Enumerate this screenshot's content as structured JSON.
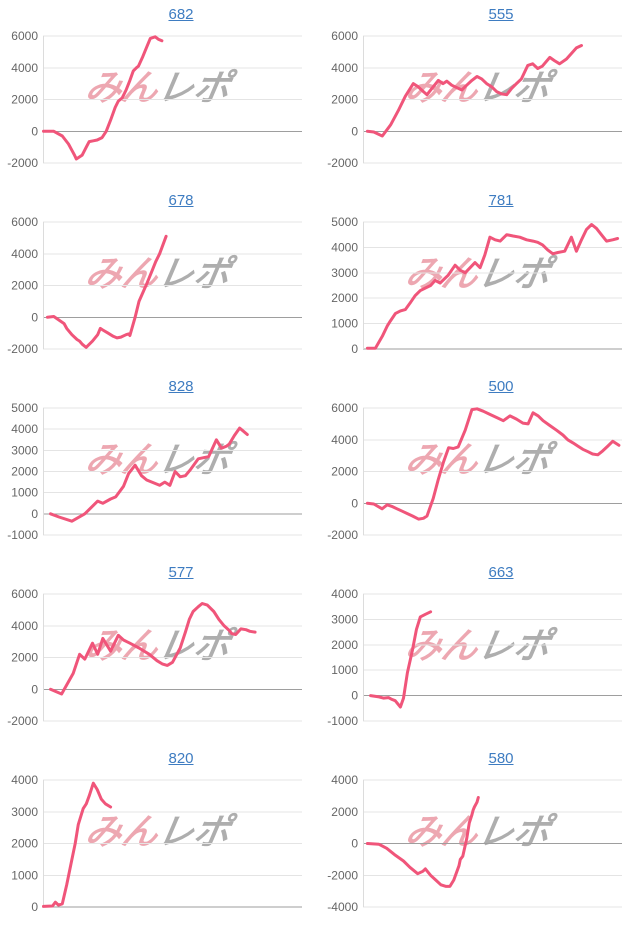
{
  "page": {
    "background": "#ffffff"
  },
  "style": {
    "line_color": "#f0557a",
    "grid_color": "#e4e4e4",
    "baseline_color": "#9e9e9e",
    "axis_line_color": "#dcdcdc",
    "label_color": "#666666",
    "title_color": "#3e7cc1",
    "watermark_pink": "#eda7b1",
    "watermark_gray": "#aeaeae"
  },
  "watermark": {
    "pink_text": "みん",
    "gray_text": "レポ"
  },
  "chart_data": [
    {
      "type": "line",
      "title": "682",
      "ylim": [
        -2000,
        6000
      ],
      "yticks": [
        6000,
        4000,
        2000,
        0,
        -2000
      ],
      "grid": true,
      "legend": "none",
      "points": [
        [
          0,
          0
        ],
        [
          0.04,
          0
        ],
        [
          0.073,
          -300
        ],
        [
          0.097,
          -800
        ],
        [
          0.11,
          -1200
        ],
        [
          0.12,
          -1500
        ],
        [
          0.127,
          -1750
        ],
        [
          0.15,
          -1500
        ],
        [
          0.166,
          -1000
        ],
        [
          0.177,
          -650
        ],
        [
          0.193,
          -600
        ],
        [
          0.208,
          -550
        ],
        [
          0.227,
          -400
        ],
        [
          0.243,
          0
        ],
        [
          0.26,
          700
        ],
        [
          0.278,
          1500
        ],
        [
          0.29,
          1900
        ],
        [
          0.305,
          2100
        ],
        [
          0.32,
          2600
        ],
        [
          0.335,
          3200
        ],
        [
          0.348,
          3800
        ],
        [
          0.36,
          4000
        ],
        [
          0.368,
          4100
        ],
        [
          0.385,
          4700
        ],
        [
          0.4,
          5300
        ],
        [
          0.414,
          5850
        ],
        [
          0.424,
          5900
        ],
        [
          0.433,
          5950
        ],
        [
          0.445,
          5800
        ],
        [
          0.459,
          5700
        ]
      ]
    },
    {
      "type": "line",
      "title": "555",
      "ylim": [
        -2000,
        6000
      ],
      "yticks": [
        6000,
        4000,
        2000,
        0,
        -2000
      ],
      "grid": true,
      "legend": "none",
      "points": [
        [
          0.015,
          0
        ],
        [
          0.04,
          -50
        ],
        [
          0.073,
          -300
        ],
        [
          0.105,
          400
        ],
        [
          0.135,
          1300
        ],
        [
          0.162,
          2200
        ],
        [
          0.193,
          3000
        ],
        [
          0.212,
          2800
        ],
        [
          0.232,
          2500
        ],
        [
          0.246,
          2300
        ],
        [
          0.27,
          2800
        ],
        [
          0.29,
          3200
        ],
        [
          0.308,
          3000
        ],
        [
          0.323,
          3150
        ],
        [
          0.342,
          2900
        ],
        [
          0.381,
          2600
        ],
        [
          0.4,
          2900
        ],
        [
          0.42,
          3200
        ],
        [
          0.44,
          3450
        ],
        [
          0.458,
          3300
        ],
        [
          0.477,
          3000
        ],
        [
          0.497,
          2800
        ],
        [
          0.516,
          2500
        ],
        [
          0.535,
          2350
        ],
        [
          0.555,
          2300
        ],
        [
          0.574,
          2700
        ],
        [
          0.593,
          3000
        ],
        [
          0.612,
          3300
        ],
        [
          0.637,
          4150
        ],
        [
          0.656,
          4250
        ],
        [
          0.675,
          3950
        ],
        [
          0.693,
          4100
        ],
        [
          0.722,
          4650
        ],
        [
          0.74,
          4450
        ],
        [
          0.76,
          4250
        ],
        [
          0.787,
          4550
        ],
        [
          0.806,
          4900
        ],
        [
          0.825,
          5250
        ],
        [
          0.845,
          5400
        ]
      ]
    },
    {
      "type": "line",
      "title": "678",
      "ylim": [
        -2000,
        6000
      ],
      "yticks": [
        6000,
        4000,
        2000,
        0,
        -2000
      ],
      "grid": true,
      "legend": "none",
      "points": [
        [
          0.015,
          0
        ],
        [
          0.04,
          50
        ],
        [
          0.08,
          -400
        ],
        [
          0.09,
          -700
        ],
        [
          0.11,
          -1100
        ],
        [
          0.13,
          -1400
        ],
        [
          0.14,
          -1500
        ],
        [
          0.15,
          -1700
        ],
        [
          0.165,
          -1900
        ],
        [
          0.19,
          -1500
        ],
        [
          0.21,
          -1100
        ],
        [
          0.22,
          -700
        ],
        [
          0.23,
          -800
        ],
        [
          0.25,
          -1000
        ],
        [
          0.27,
          -1200
        ],
        [
          0.285,
          -1300
        ],
        [
          0.3,
          -1250
        ],
        [
          0.32,
          -1100
        ],
        [
          0.33,
          -1050
        ],
        [
          0.335,
          -1150
        ],
        [
          0.355,
          0
        ],
        [
          0.37,
          1000
        ],
        [
          0.4,
          2100
        ],
        [
          0.42,
          2900
        ],
        [
          0.435,
          3500
        ],
        [
          0.45,
          4000
        ],
        [
          0.475,
          5100
        ]
      ]
    },
    {
      "type": "line",
      "title": "781",
      "ylim": [
        0,
        5000
      ],
      "yticks": [
        5000,
        4000,
        3000,
        2000,
        1000,
        0
      ],
      "grid": true,
      "legend": "none",
      "points": [
        [
          0.015,
          30
        ],
        [
          0.046,
          30
        ],
        [
          0.073,
          500
        ],
        [
          0.092,
          900
        ],
        [
          0.104,
          1100
        ],
        [
          0.124,
          1400
        ],
        [
          0.143,
          1500
        ],
        [
          0.162,
          1550
        ],
        [
          0.18,
          1800
        ],
        [
          0.2,
          2100
        ],
        [
          0.22,
          2300
        ],
        [
          0.24,
          2400
        ],
        [
          0.26,
          2500
        ],
        [
          0.278,
          2700
        ],
        [
          0.297,
          2600
        ],
        [
          0.328,
          2900
        ],
        [
          0.355,
          3300
        ],
        [
          0.375,
          3100
        ],
        [
          0.394,
          3000
        ],
        [
          0.413,
          3200
        ],
        [
          0.432,
          3400
        ],
        [
          0.452,
          3200
        ],
        [
          0.47,
          3700
        ],
        [
          0.49,
          4400
        ],
        [
          0.51,
          4300
        ],
        [
          0.53,
          4250
        ],
        [
          0.555,
          4500
        ],
        [
          0.58,
          4450
        ],
        [
          0.606,
          4400
        ],
        [
          0.632,
          4300
        ],
        [
          0.657,
          4250
        ],
        [
          0.675,
          4200
        ],
        [
          0.694,
          4100
        ],
        [
          0.714,
          3900
        ],
        [
          0.734,
          3750
        ],
        [
          0.753,
          3800
        ],
        [
          0.78,
          3850
        ],
        [
          0.806,
          4400
        ],
        [
          0.825,
          3850
        ],
        [
          0.845,
          4300
        ],
        [
          0.864,
          4700
        ],
        [
          0.884,
          4900
        ],
        [
          0.903,
          4750
        ],
        [
          0.922,
          4500
        ],
        [
          0.942,
          4250
        ],
        [
          0.966,
          4300
        ],
        [
          0.985,
          4350
        ]
      ]
    },
    {
      "type": "line",
      "title": "828",
      "ylim": [
        -1000,
        5000
      ],
      "yticks": [
        5000,
        4000,
        3000,
        2000,
        1000,
        0,
        -1000
      ],
      "grid": true,
      "legend": "none",
      "points": [
        [
          0.027,
          0
        ],
        [
          0.06,
          -150
        ],
        [
          0.11,
          -350
        ],
        [
          0.16,
          0
        ],
        [
          0.21,
          600
        ],
        [
          0.23,
          500
        ],
        [
          0.26,
          700
        ],
        [
          0.28,
          800
        ],
        [
          0.31,
          1300
        ],
        [
          0.33,
          1900
        ],
        [
          0.355,
          2300
        ],
        [
          0.38,
          1800
        ],
        [
          0.4,
          1600
        ],
        [
          0.42,
          1500
        ],
        [
          0.45,
          1350
        ],
        [
          0.47,
          1500
        ],
        [
          0.49,
          1350
        ],
        [
          0.51,
          2000
        ],
        [
          0.53,
          1750
        ],
        [
          0.55,
          1800
        ],
        [
          0.57,
          2100
        ],
        [
          0.6,
          2600
        ],
        [
          0.62,
          2650
        ],
        [
          0.64,
          2700
        ],
        [
          0.67,
          3500
        ],
        [
          0.69,
          3100
        ],
        [
          0.71,
          3200
        ],
        [
          0.72,
          3300
        ],
        [
          0.74,
          3700
        ],
        [
          0.76,
          4050
        ],
        [
          0.77,
          3950
        ],
        [
          0.79,
          3750
        ]
      ]
    },
    {
      "type": "line",
      "title": "500",
      "ylim": [
        -2000,
        6000
      ],
      "yticks": [
        6000,
        4000,
        2000,
        0,
        -2000
      ],
      "grid": true,
      "legend": "none",
      "points": [
        [
          0.015,
          0
        ],
        [
          0.04,
          -50
        ],
        [
          0.072,
          -350
        ],
        [
          0.092,
          -100
        ],
        [
          0.11,
          -200
        ],
        [
          0.13,
          -350
        ],
        [
          0.15,
          -500
        ],
        [
          0.17,
          -650
        ],
        [
          0.19,
          -800
        ],
        [
          0.213,
          -1000
        ],
        [
          0.232,
          -950
        ],
        [
          0.246,
          -800
        ],
        [
          0.27,
          300
        ],
        [
          0.29,
          1500
        ],
        [
          0.31,
          2600
        ],
        [
          0.33,
          3500
        ],
        [
          0.348,
          3450
        ],
        [
          0.367,
          3550
        ],
        [
          0.394,
          4600
        ],
        [
          0.42,
          5900
        ],
        [
          0.44,
          5950
        ],
        [
          0.464,
          5800
        ],
        [
          0.49,
          5600
        ],
        [
          0.516,
          5400
        ],
        [
          0.542,
          5200
        ],
        [
          0.568,
          5500
        ],
        [
          0.593,
          5300
        ],
        [
          0.618,
          5050
        ],
        [
          0.638,
          5000
        ],
        [
          0.657,
          5700
        ],
        [
          0.677,
          5500
        ],
        [
          0.696,
          5200
        ],
        [
          0.722,
          4900
        ],
        [
          0.748,
          4600
        ],
        [
          0.773,
          4300
        ],
        [
          0.792,
          4000
        ],
        [
          0.812,
          3800
        ],
        [
          0.831,
          3600
        ],
        [
          0.85,
          3400
        ],
        [
          0.87,
          3250
        ],
        [
          0.888,
          3100
        ],
        [
          0.908,
          3050
        ],
        [
          0.927,
          3300
        ],
        [
          0.947,
          3600
        ],
        [
          0.966,
          3900
        ],
        [
          0.99,
          3650
        ]
      ]
    },
    {
      "type": "line",
      "title": "577",
      "ylim": [
        -2000,
        6000
      ],
      "yticks": [
        6000,
        4000,
        2000,
        0,
        -2000
      ],
      "grid": true,
      "legend": "none",
      "points": [
        [
          0.027,
          0
        ],
        [
          0.07,
          -300
        ],
        [
          0.115,
          1000
        ],
        [
          0.14,
          2200
        ],
        [
          0.16,
          1900
        ],
        [
          0.19,
          2900
        ],
        [
          0.21,
          2200
        ],
        [
          0.23,
          3200
        ],
        [
          0.26,
          2400
        ],
        [
          0.29,
          3400
        ],
        [
          0.31,
          3100
        ],
        [
          0.335,
          2900
        ],
        [
          0.37,
          2600
        ],
        [
          0.41,
          2200
        ],
        [
          0.44,
          1800
        ],
        [
          0.46,
          1600
        ],
        [
          0.48,
          1500
        ],
        [
          0.5,
          1700
        ],
        [
          0.53,
          2600
        ],
        [
          0.55,
          3600
        ],
        [
          0.565,
          4400
        ],
        [
          0.58,
          4900
        ],
        [
          0.6,
          5200
        ],
        [
          0.615,
          5400
        ],
        [
          0.635,
          5300
        ],
        [
          0.66,
          4900
        ],
        [
          0.68,
          4400
        ],
        [
          0.7,
          4000
        ],
        [
          0.72,
          3700
        ],
        [
          0.73,
          3500
        ],
        [
          0.745,
          3450
        ],
        [
          0.765,
          3800
        ],
        [
          0.785,
          3750
        ],
        [
          0.8,
          3650
        ],
        [
          0.82,
          3600
        ]
      ]
    },
    {
      "type": "line",
      "title": "663",
      "ylim": [
        -1000,
        4000
      ],
      "yticks": [
        4000,
        3000,
        2000,
        1000,
        0,
        -1000
      ],
      "grid": true,
      "legend": "none",
      "points": [
        [
          0.027,
          0
        ],
        [
          0.06,
          -50
        ],
        [
          0.077,
          -100
        ],
        [
          0.097,
          -80
        ],
        [
          0.11,
          -150
        ],
        [
          0.123,
          -200
        ],
        [
          0.143,
          -450
        ],
        [
          0.155,
          -100
        ],
        [
          0.17,
          900
        ],
        [
          0.19,
          1800
        ],
        [
          0.205,
          2600
        ],
        [
          0.22,
          3100
        ],
        [
          0.24,
          3200
        ],
        [
          0.26,
          3300
        ]
      ]
    },
    {
      "type": "line",
      "title": "820",
      "ylim": [
        0,
        4000
      ],
      "yticks": [
        4000,
        3000,
        2000,
        1000,
        0
      ],
      "grid": true,
      "legend": "none",
      "points": [
        [
          0,
          20
        ],
        [
          0.035,
          30
        ],
        [
          0.046,
          150
        ],
        [
          0.058,
          60
        ],
        [
          0.073,
          100
        ],
        [
          0.09,
          700
        ],
        [
          0.11,
          1500
        ],
        [
          0.123,
          2000
        ],
        [
          0.135,
          2600
        ],
        [
          0.154,
          3100
        ],
        [
          0.166,
          3250
        ],
        [
          0.177,
          3500
        ],
        [
          0.193,
          3900
        ],
        [
          0.208,
          3700
        ],
        [
          0.224,
          3400
        ],
        [
          0.24,
          3250
        ],
        [
          0.26,
          3150
        ]
      ]
    },
    {
      "type": "line",
      "title": "580",
      "ylim": [
        -4000,
        4000
      ],
      "yticks": [
        4000,
        2000,
        0,
        -2000,
        -4000
      ],
      "grid": true,
      "legend": "none",
      "points": [
        [
          0.015,
          0
        ],
        [
          0.06,
          -50
        ],
        [
          0.09,
          -300
        ],
        [
          0.12,
          -700
        ],
        [
          0.155,
          -1100
        ],
        [
          0.18,
          -1500
        ],
        [
          0.21,
          -1900
        ],
        [
          0.23,
          -1750
        ],
        [
          0.24,
          -1600
        ],
        [
          0.26,
          -2000
        ],
        [
          0.28,
          -2300
        ],
        [
          0.3,
          -2600
        ],
        [
          0.32,
          -2700
        ],
        [
          0.335,
          -2700
        ],
        [
          0.35,
          -2300
        ],
        [
          0.37,
          -1400
        ],
        [
          0.375,
          -1000
        ],
        [
          0.385,
          -800
        ],
        [
          0.4,
          300
        ],
        [
          0.41,
          1300
        ],
        [
          0.42,
          1800
        ],
        [
          0.425,
          2100
        ],
        [
          0.43,
          2300
        ],
        [
          0.44,
          2600
        ],
        [
          0.445,
          2900
        ]
      ]
    }
  ]
}
